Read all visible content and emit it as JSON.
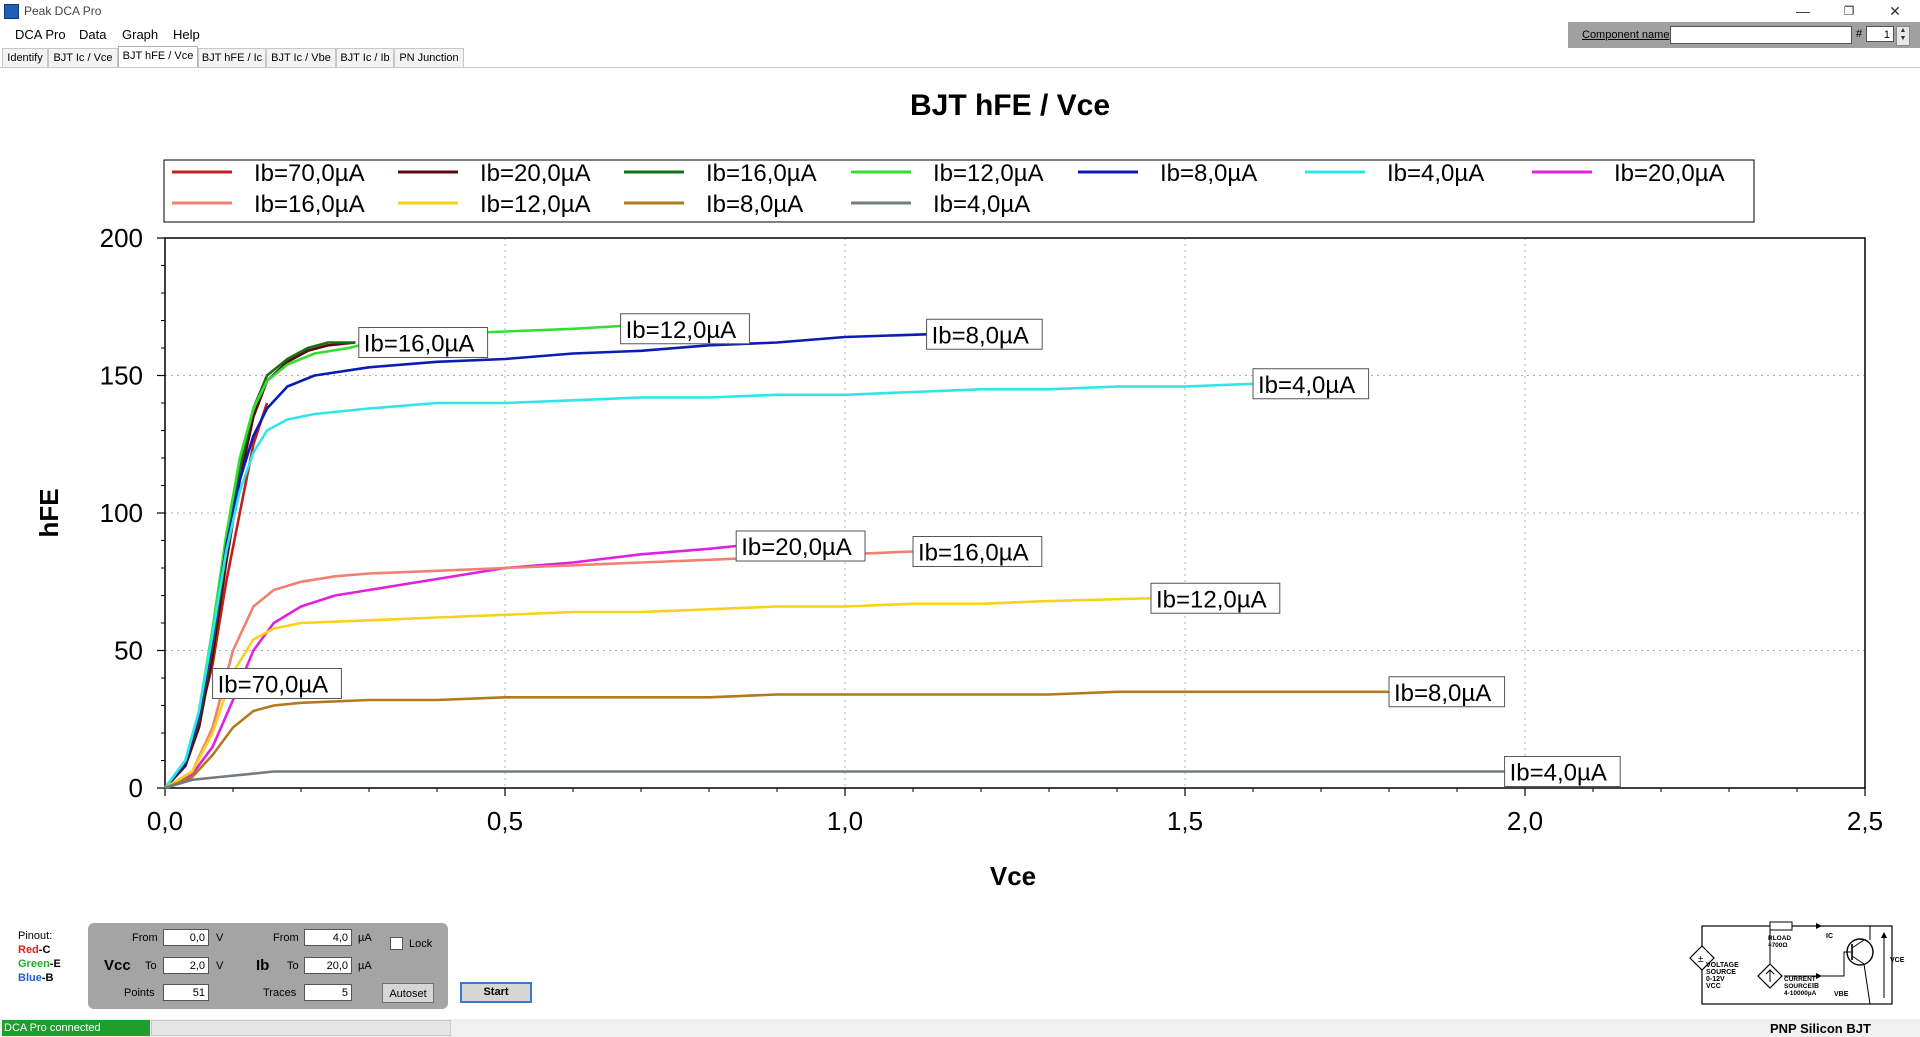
{
  "app": {
    "title": "Peak DCA Pro"
  },
  "window": {
    "minimize": "—",
    "restore": "❐",
    "close": "✕"
  },
  "menu": [
    "DCA Pro",
    "Data",
    "Graph",
    "Help"
  ],
  "component": {
    "label": "Component name",
    "value": "",
    "hash_label": "#",
    "number": "1"
  },
  "tabs": [
    "Identify",
    "BJT Ic / Vce",
    "BJT hFE / Vce",
    "BJT hFE / Ic",
    "BJT Ic / Vbe",
    "BJT Ic / Ib",
    "PN Junction"
  ],
  "active_tab": "BJT hFE / Vce",
  "chart_data": {
    "type": "line",
    "title": "BJT hFE / Vce",
    "xlabel": "Vce",
    "ylabel": "hFE",
    "xlim": [
      0,
      2.5
    ],
    "ylim": [
      0,
      200
    ],
    "xticks": [
      "0,0",
      "0,5",
      "1,0",
      "1,5",
      "2,0",
      "2,5"
    ],
    "yticks": [
      "0",
      "50",
      "100",
      "150",
      "200"
    ],
    "grid": true,
    "legend_position": "top",
    "series": [
      {
        "name": "Ib=70,0µA",
        "color": "#c41e1e",
        "label": "Ib=70,0µA",
        "label_at": [
          0.07,
          38
        ],
        "x": [
          0,
          0.03,
          0.05,
          0.07,
          0.09,
          0.11,
          0.13,
          0.15
        ],
        "y": [
          0,
          10,
          25,
          45,
          75,
          100,
          125,
          140
        ]
      },
      {
        "name": "Ib=20,0µA",
        "color": "#5a0a0a",
        "label": null,
        "x": [
          0,
          0.03,
          0.05,
          0.07,
          0.09,
          0.11,
          0.13,
          0.15,
          0.18,
          0.21,
          0.24,
          0.28
        ],
        "y": [
          0,
          8,
          22,
          48,
          82,
          112,
          135,
          148,
          155,
          159,
          161,
          162
        ]
      },
      {
        "name": "Ib=16,0µA",
        "color": "#157015",
        "label": "Ib=16,0µA",
        "label_at": [
          0.285,
          162
        ],
        "x": [
          0,
          0.03,
          0.05,
          0.07,
          0.09,
          0.11,
          0.13,
          0.15,
          0.18,
          0.21,
          0.24,
          0.28
        ],
        "y": [
          0,
          9,
          25,
          52,
          86,
          116,
          138,
          150,
          156,
          160,
          162,
          162
        ]
      },
      {
        "name": "Ib=12,0µA",
        "color": "#32e032",
        "label": "Ib=12,0µA",
        "label_at": [
          0.67,
          167
        ],
        "x": [
          0,
          0.03,
          0.05,
          0.07,
          0.09,
          0.11,
          0.13,
          0.15,
          0.18,
          0.22,
          0.27,
          0.32,
          0.4,
          0.5,
          0.6,
          0.67
        ],
        "y": [
          0,
          10,
          28,
          58,
          92,
          120,
          138,
          148,
          154,
          158,
          160,
          163,
          165,
          166,
          167,
          168
        ]
      },
      {
        "name": "Ib=8,0µA",
        "color": "#0a1cb4",
        "label": "Ib=8,0µA",
        "label_at": [
          1.12,
          165
        ],
        "x": [
          0,
          0.03,
          0.05,
          0.07,
          0.09,
          0.11,
          0.13,
          0.15,
          0.18,
          0.22,
          0.3,
          0.4,
          0.5,
          0.6,
          0.7,
          0.8,
          0.9,
          1.0,
          1.12
        ],
        "y": [
          0,
          9,
          26,
          54,
          88,
          112,
          128,
          138,
          146,
          150,
          153,
          155,
          156,
          158,
          159,
          161,
          162,
          164,
          165
        ]
      },
      {
        "name": "Ib=4,0µA",
        "color": "#2ee6ea",
        "label": "Ib=4,0µA",
        "label_at": [
          1.6,
          147
        ],
        "x": [
          0,
          0.03,
          0.05,
          0.07,
          0.09,
          0.11,
          0.13,
          0.15,
          0.18,
          0.22,
          0.3,
          0.4,
          0.5,
          0.6,
          0.7,
          0.8,
          0.9,
          1.0,
          1.1,
          1.2,
          1.3,
          1.4,
          1.5,
          1.6
        ],
        "y": [
          0,
          10,
          28,
          56,
          86,
          108,
          122,
          130,
          134,
          136,
          138,
          140,
          140,
          141,
          142,
          142,
          143,
          143,
          144,
          145,
          145,
          146,
          146,
          147
        ]
      },
      {
        "name": "Ib=20,0µA",
        "color": "#e021e0",
        "label": "Ib=20,0µA",
        "label_at": [
          0.84,
          88
        ],
        "x": [
          0,
          0.04,
          0.07,
          0.1,
          0.13,
          0.16,
          0.2,
          0.25,
          0.3,
          0.4,
          0.5,
          0.6,
          0.7,
          0.8,
          0.84
        ],
        "y": [
          0,
          5,
          15,
          32,
          50,
          60,
          66,
          70,
          72,
          76,
          80,
          82,
          85,
          87,
          88
        ]
      },
      {
        "name": "Ib=16,0µA",
        "color": "#f08070",
        "label": "Ib=16,0µA",
        "label_at": [
          1.1,
          86
        ],
        "x": [
          0,
          0.04,
          0.07,
          0.1,
          0.13,
          0.16,
          0.2,
          0.25,
          0.3,
          0.4,
          0.5,
          0.6,
          0.7,
          0.8,
          0.9,
          1.0,
          1.1
        ],
        "y": [
          0,
          6,
          22,
          50,
          66,
          72,
          75,
          77,
          78,
          79,
          80,
          81,
          82,
          83,
          84,
          85,
          86
        ]
      },
      {
        "name": "Ib=12,0µA",
        "color": "#f6d21a",
        "label": "Ib=12,0µA",
        "label_at": [
          1.45,
          69
        ],
        "x": [
          0,
          0.04,
          0.07,
          0.1,
          0.13,
          0.16,
          0.2,
          0.3,
          0.4,
          0.5,
          0.6,
          0.7,
          0.8,
          0.9,
          1.0,
          1.1,
          1.2,
          1.3,
          1.45
        ],
        "y": [
          0,
          6,
          20,
          42,
          54,
          58,
          60,
          61,
          62,
          63,
          64,
          64,
          65,
          66,
          66,
          67,
          67,
          68,
          69
        ]
      },
      {
        "name": "Ib=8,0µA",
        "color": "#b27a1e",
        "label": "Ib=8,0µA",
        "label_at": [
          1.8,
          35
        ],
        "x": [
          0,
          0.04,
          0.07,
          0.1,
          0.13,
          0.16,
          0.2,
          0.3,
          0.4,
          0.5,
          0.6,
          0.7,
          0.8,
          0.9,
          1.0,
          1.1,
          1.2,
          1.3,
          1.4,
          1.5,
          1.6,
          1.7,
          1.8
        ],
        "y": [
          0,
          4,
          12,
          22,
          28,
          30,
          31,
          32,
          32,
          33,
          33,
          33,
          33,
          34,
          34,
          34,
          34,
          34,
          35,
          35,
          35,
          35,
          35
        ]
      },
      {
        "name": "Ib=4,0µA",
        "color": "#707c84",
        "label": "Ib=4,0µA",
        "label_at": [
          1.97,
          6
        ],
        "x": [
          0,
          0.04,
          0.08,
          0.12,
          0.16,
          0.25,
          0.4,
          0.6,
          0.8,
          1.0,
          1.2,
          1.4,
          1.6,
          1.8,
          1.97
        ],
        "y": [
          0,
          3,
          4,
          5,
          6,
          6,
          6,
          6,
          6,
          6,
          6,
          6,
          6,
          6,
          6
        ]
      }
    ]
  },
  "pinout": {
    "title": "Pinout:",
    "red": "Red",
    "red_pin": "-C",
    "green": "Green",
    "green_pin": "-E",
    "blue": "Blue",
    "blue_pin": "-B"
  },
  "controls": {
    "vcc_label": "Vcc",
    "ib_label": "Ib",
    "from_label": "From",
    "to_label": "To",
    "points_label": "Points",
    "traces_label": "Traces",
    "vcc_from": "0,0",
    "vcc_to": "2,0",
    "vcc_unit": "V",
    "ib_from": "4,0",
    "ib_to": "20,0",
    "ib_unit": "µA",
    "points": "51",
    "traces": "5",
    "lock_label": "Lock",
    "autoset_label": "Autoset",
    "start_label": "Start"
  },
  "circuit": {
    "rload": "RLOAD",
    "rload_val": "≈700Ω",
    "ic": "IC",
    "ib": "IB",
    "vbe": "VBE",
    "vce": "VCE",
    "vsrc_1": "VOLTAGE",
    "vsrc_2": "SOURCE",
    "vsrc_3": "0-12V",
    "vsrc_4": "VCC",
    "isrc_1": "CURRENT",
    "isrc_2": "SOURCE",
    "isrc_3": "4-10000µA"
  },
  "status": {
    "connection": "DCA Pro connected",
    "component_type": "PNP Silicon BJT"
  }
}
